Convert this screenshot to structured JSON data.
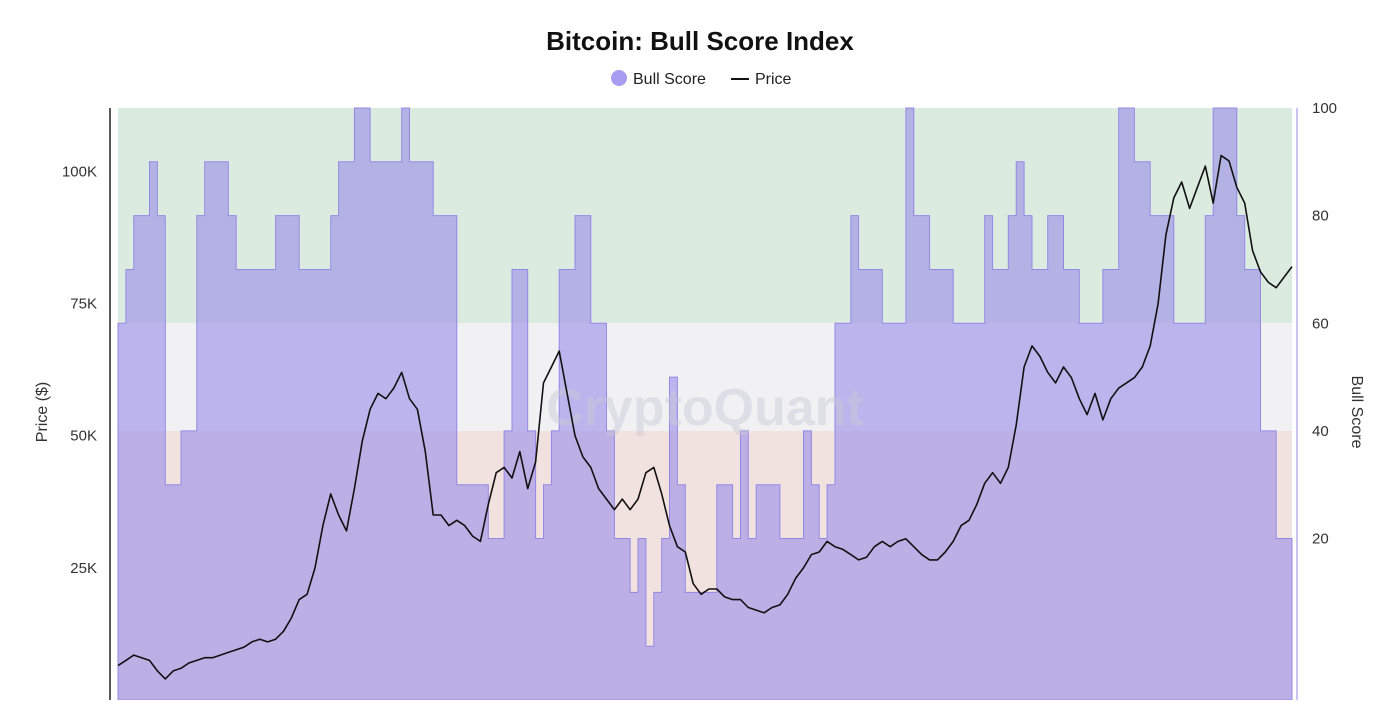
{
  "chart_data": {
    "type": "area",
    "title": "Bitcoin: Bull Score Index",
    "legend": {
      "placement": "top-center",
      "entries": [
        "Bull Score",
        "Price"
      ]
    },
    "watermark": "CryptoQuant",
    "y_left": {
      "label": "Price ($)",
      "ticks": [
        25000,
        50000,
        75000,
        100000
      ],
      "tick_labels": [
        "25K",
        "50K",
        "75K",
        "100K"
      ],
      "range": [
        0,
        112000
      ]
    },
    "y_right": {
      "label": "Bull Score",
      "ticks": [
        20,
        40,
        60,
        80,
        100
      ],
      "tick_labels": [
        "20",
        "40",
        "60",
        "80",
        "100"
      ],
      "range": [
        -10,
        100
      ]
    },
    "zones": [
      {
        "name": "bullish",
        "from": 60,
        "to": 100,
        "color": "#dcebe0"
      },
      {
        "name": "neutral",
        "from": 40,
        "to": 60,
        "color": "#f1f1f4"
      },
      {
        "name": "bearish",
        "from": -10,
        "to": 40,
        "color": "#f2e2df"
      }
    ],
    "colors": {
      "bull_score_fill": "#9b8fe8",
      "bull_score_line": "#9488e6",
      "price_line": "#111111"
    },
    "x": [
      0,
      1,
      2,
      3,
      4,
      5,
      6,
      7,
      8,
      9,
      10,
      11,
      12,
      13,
      14,
      15,
      16,
      17,
      18,
      19,
      20,
      21,
      22,
      23,
      24,
      25,
      26,
      27,
      28,
      29,
      30,
      31,
      32,
      33,
      34,
      35,
      36,
      37,
      38,
      39,
      40,
      41,
      42,
      43,
      44,
      45,
      46,
      47,
      48,
      49,
      50,
      51,
      52,
      53,
      54,
      55,
      56,
      57,
      58,
      59,
      60,
      61,
      62,
      63,
      64,
      65,
      66,
      67,
      68,
      69,
      70,
      71,
      72,
      73,
      74,
      75,
      76,
      77,
      78,
      79,
      80,
      81,
      82,
      83,
      84,
      85,
      86,
      87,
      88,
      89,
      90,
      91,
      92,
      93,
      94,
      95,
      96,
      97,
      98,
      99,
      100,
      101,
      102,
      103,
      104,
      105,
      106,
      107,
      108,
      109,
      110,
      111,
      112,
      113,
      114,
      115,
      116,
      117,
      118,
      119,
      120,
      121,
      122,
      123,
      124,
      125,
      126,
      127,
      128,
      129,
      130,
      131,
      132,
      133,
      134,
      135,
      136,
      137,
      138,
      139,
      140,
      141,
      142,
      143,
      144,
      145,
      146,
      147,
      148,
      149
    ],
    "series": [
      {
        "name": "Bull Score",
        "values": [
          60,
          70,
          80,
          80,
          90,
          80,
          30,
          30,
          40,
          40,
          80,
          90,
          90,
          90,
          80,
          70,
          70,
          70,
          70,
          70,
          80,
          80,
          80,
          70,
          70,
          70,
          70,
          80,
          90,
          90,
          100,
          100,
          90,
          90,
          90,
          90,
          100,
          90,
          90,
          90,
          80,
          80,
          80,
          30,
          30,
          30,
          30,
          20,
          20,
          40,
          70,
          70,
          40,
          20,
          30,
          40,
          70,
          70,
          80,
          80,
          60,
          60,
          40,
          20,
          20,
          10,
          20,
          0,
          10,
          20,
          50,
          30,
          10,
          10,
          10,
          10,
          30,
          30,
          20,
          40,
          20,
          30,
          30,
          30,
          20,
          20,
          20,
          40,
          30,
          20,
          30,
          60,
          60,
          80,
          70,
          70,
          70,
          60,
          60,
          60,
          100,
          80,
          80,
          70,
          70,
          70,
          60,
          60,
          60,
          60,
          80,
          70,
          70,
          80,
          90,
          80,
          70,
          70,
          80,
          80,
          70,
          70,
          60,
          60,
          60,
          70,
          70,
          100,
          100,
          90,
          90,
          80,
          80,
          80,
          60,
          60,
          60,
          60,
          80,
          100,
          100,
          100,
          80,
          70,
          70,
          40,
          40,
          20,
          20,
          20
        ]
      },
      {
        "name": "Price",
        "values": [
          6500,
          7500,
          8500,
          8000,
          7500,
          5500,
          4000,
          5500,
          6000,
          7000,
          7500,
          8000,
          8000,
          8500,
          9000,
          9500,
          10000,
          11000,
          11500,
          11000,
          11500,
          13000,
          15500,
          19000,
          20000,
          25000,
          33000,
          39000,
          35000,
          32000,
          40000,
          49000,
          55000,
          58000,
          57000,
          59000,
          62000,
          57000,
          55000,
          47000,
          35000,
          35000,
          33000,
          34000,
          33000,
          31000,
          30000,
          37000,
          43000,
          44000,
          42000,
          47000,
          40000,
          45000,
          60000,
          63000,
          66000,
          58000,
          50000,
          46000,
          44000,
          40000,
          38000,
          36000,
          38000,
          36000,
          38000,
          43000,
          44000,
          39000,
          33000,
          29000,
          28000,
          22000,
          20000,
          21000,
          21000,
          19500,
          19000,
          19000,
          17500,
          17000,
          16500,
          17500,
          18000,
          20000,
          23000,
          25000,
          27500,
          28000,
          30000,
          29000,
          28500,
          27500,
          26500,
          27000,
          29000,
          30000,
          29000,
          30000,
          30500,
          29000,
          27500,
          26500,
          26500,
          28000,
          30000,
          33000,
          34000,
          37000,
          41000,
          43000,
          41000,
          44000,
          52000,
          63000,
          67000,
          65000,
          62000,
          60000,
          63000,
          61000,
          57000,
          54000,
          58000,
          53000,
          57000,
          59000,
          60000,
          61000,
          63000,
          67000,
          75000,
          88000,
          95000,
          98000,
          93000,
          97000,
          101000,
          94000,
          103000,
          102000,
          97000,
          94000,
          85000,
          81000,
          79000,
          78000,
          80000,
          82000
        ]
      }
    ]
  }
}
